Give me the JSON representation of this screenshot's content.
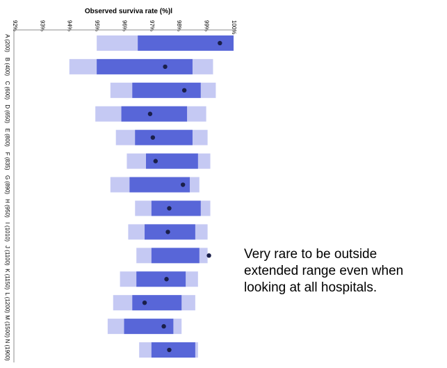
{
  "chart_data": {
    "type": "bar",
    "title": "Observed surviva rate (%)l",
    "xlabel": "Observed surviva rate (%)l",
    "ylabel": "",
    "xlim": [
      92,
      100
    ],
    "ticks": [
      "92%",
      "93%",
      "94%",
      "95%",
      "96%",
      "97%",
      "98%",
      "99%",
      "100%"
    ],
    "tick_values": [
      92,
      93,
      94,
      95,
      96,
      97,
      98,
      99,
      100
    ],
    "categories": [
      "A (200)",
      "B (400)",
      "C (600)",
      "D (650)",
      "E (800)",
      "F (835)",
      "G (890)",
      "H (950)",
      "I (1010)",
      "J (1100)",
      "K (1150)",
      "L (1200)",
      "M (1500)",
      "N (1900)"
    ],
    "series": [
      {
        "role": "extended_range",
        "color": "#c5c9f3",
        "ranges": [
          [
            95.0,
            100.0
          ],
          [
            94.0,
            99.25
          ],
          [
            95.5,
            99.35
          ],
          [
            94.95,
            99.0
          ],
          [
            95.7,
            99.05
          ],
          [
            96.1,
            99.15
          ],
          [
            95.5,
            98.75
          ],
          [
            96.4,
            99.15
          ],
          [
            96.15,
            99.05
          ],
          [
            96.45,
            99.05
          ],
          [
            95.85,
            98.7
          ],
          [
            95.6,
            98.6
          ],
          [
            95.4,
            98.1
          ],
          [
            96.55,
            98.7
          ]
        ]
      },
      {
        "role": "main_range",
        "color": "#5866d8",
        "ranges": [
          [
            96.5,
            100.0
          ],
          [
            95.0,
            98.5
          ],
          [
            96.3,
            98.8
          ],
          [
            95.9,
            98.3
          ],
          [
            96.4,
            98.5
          ],
          [
            96.8,
            98.7
          ],
          [
            96.2,
            98.4
          ],
          [
            97.0,
            98.8
          ],
          [
            96.75,
            98.6
          ],
          [
            97.0,
            98.75
          ],
          [
            96.45,
            98.25
          ],
          [
            96.3,
            98.1
          ],
          [
            96.0,
            97.8
          ],
          [
            97.0,
            98.6
          ]
        ]
      },
      {
        "role": "observed",
        "color": "#1a1f4a",
        "values": [
          99.5,
          97.5,
          98.2,
          96.95,
          97.05,
          97.15,
          98.15,
          97.65,
          97.6,
          99.1,
          97.55,
          96.75,
          97.45,
          97.65
        ]
      }
    ],
    "grid": false,
    "legend": "none"
  },
  "annotation": {
    "lines": [
      "Very rare to be outside",
      "extended range even when",
      "looking at all hospitals."
    ]
  }
}
